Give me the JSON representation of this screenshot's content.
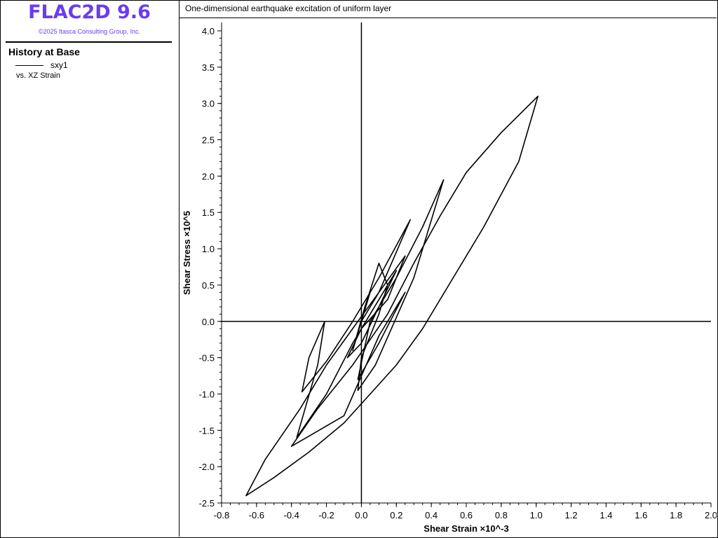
{
  "app": {
    "title": "FLAC2D 9.6",
    "copyright": "©2025 Itasca Consulting Group, Inc."
  },
  "legend": {
    "title": "History at Base",
    "series_name": "sxy1",
    "versus": "vs. XZ Strain"
  },
  "plot": {
    "title": "One-dimensional earthquake excitation of uniform layer"
  },
  "colors": {
    "brand": "#6a3cf0",
    "line": "#000000"
  },
  "chart_data": {
    "type": "line",
    "title": "One-dimensional earthquake excitation of uniform layer",
    "xlabel": "Shear Strain ×10^-3",
    "ylabel": "Shear Stress ×10^5",
    "xlim": [
      -0.8,
      2.0
    ],
    "ylim": [
      -2.5,
      4.0
    ],
    "x_ticks": [
      "-0.8",
      "-0.6",
      "-0.4",
      "-0.2",
      "0.0",
      "0.2",
      "0.4",
      "0.6",
      "0.8",
      "1.0",
      "1.2",
      "1.4",
      "1.6",
      "1.8",
      "2.0"
    ],
    "y_ticks": [
      "4.0",
      "3.5",
      "3.0",
      "2.5",
      "2.0",
      "1.5",
      "1.0",
      "0.5",
      "0.0",
      "-0.5",
      "-1.0",
      "-1.5",
      "-2.0",
      "-2.5"
    ],
    "grid": false,
    "legend": "left-panel",
    "series": [
      {
        "name": "sxy1",
        "x": [
          0.0,
          0.05,
          0.0,
          -0.05,
          0.02,
          0.1,
          0.15,
          0.1,
          0.0,
          -0.02,
          0.08,
          0.3,
          0.47,
          0.35,
          0.2,
          0.05,
          -0.02,
          0.1,
          0.25,
          0.1,
          -0.1,
          -0.4,
          -0.25,
          -0.05,
          0.15,
          0.3,
          0.45,
          0.6,
          0.8,
          1.01,
          0.9,
          0.7,
          0.5,
          0.35,
          0.2,
          0.05,
          -0.1,
          -0.3,
          -0.5,
          -0.66,
          -0.55,
          -0.35,
          -0.2,
          -0.05,
          0.1,
          0.28,
          0.1,
          -0.05,
          -0.2,
          -0.34,
          -0.3,
          -0.21,
          -0.25,
          -0.37,
          -0.2,
          -0.05,
          0.1,
          0.2,
          0.1,
          0.0,
          -0.08,
          0.0,
          0.15,
          0.25,
          0.1,
          0.0,
          0.0
        ],
        "y": [
          0.0,
          0.4,
          0.0,
          -0.4,
          0.2,
          0.8,
          0.5,
          0.1,
          -0.5,
          -0.95,
          -0.6,
          0.6,
          1.95,
          1.3,
          0.6,
          0.0,
          -0.8,
          -0.3,
          0.4,
          -0.2,
          -1.3,
          -1.72,
          -1.2,
          -0.6,
          0.1,
          0.8,
          1.45,
          2.05,
          2.6,
          3.1,
          2.2,
          1.3,
          0.5,
          -0.1,
          -0.6,
          -1.0,
          -1.4,
          -1.8,
          -2.15,
          -2.4,
          -1.9,
          -1.2,
          -0.6,
          -0.1,
          0.4,
          1.4,
          0.6,
          0.0,
          -0.55,
          -0.97,
          -0.5,
          0.0,
          -0.6,
          -1.6,
          -1.0,
          -0.3,
          0.3,
          0.7,
          0.2,
          -0.3,
          -0.5,
          -0.1,
          0.3,
          0.9,
          0.4,
          0.0,
          0.0
        ]
      }
    ]
  }
}
